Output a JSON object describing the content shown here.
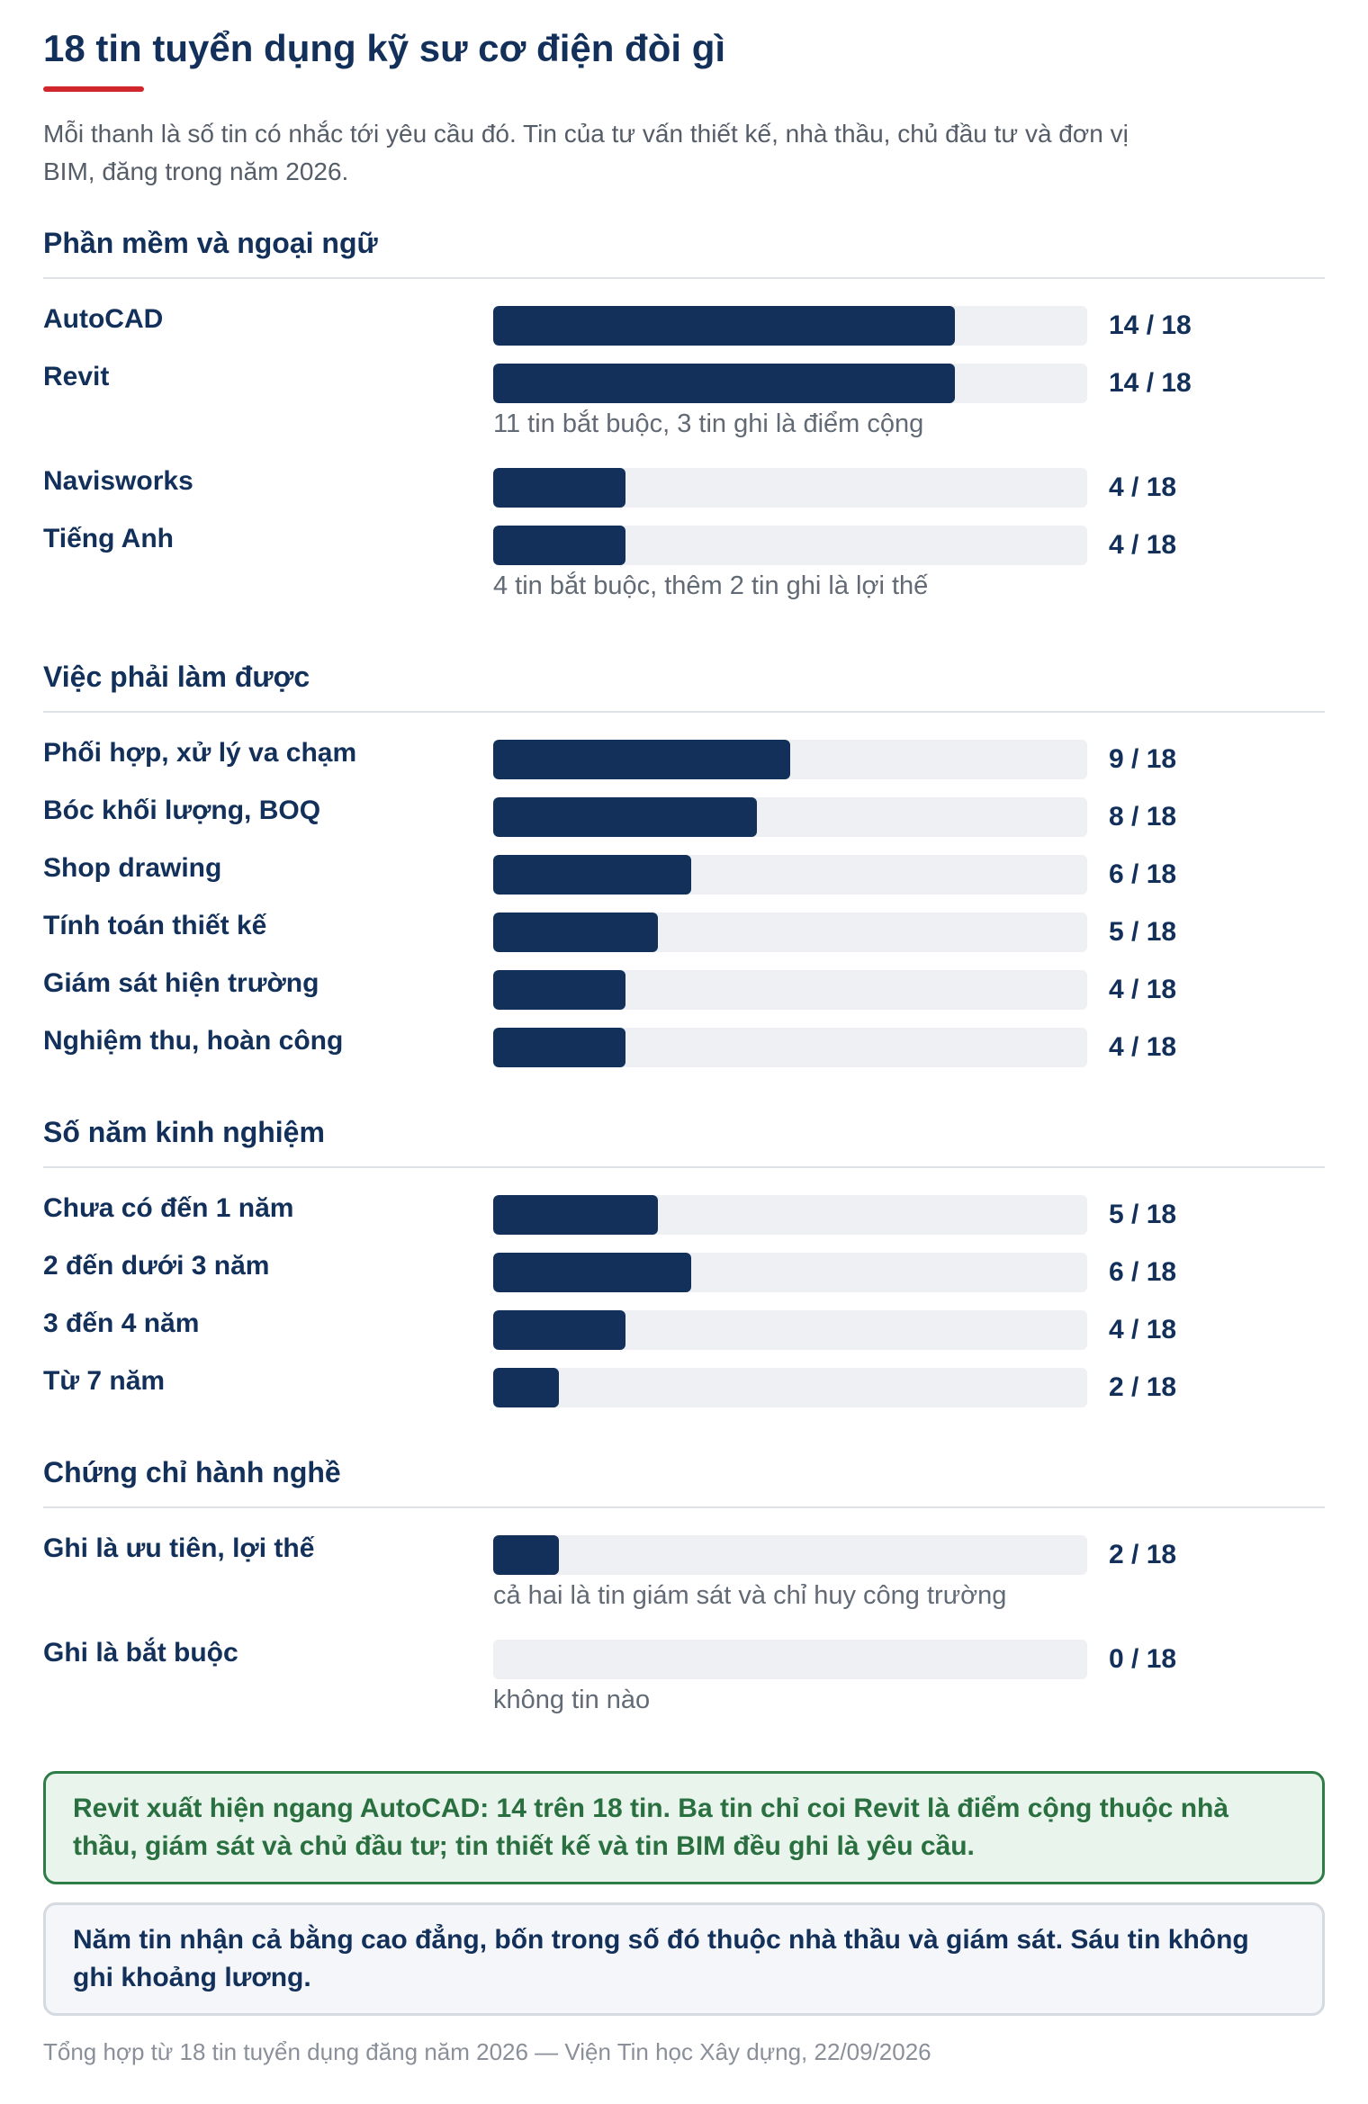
{
  "title": "18 tin tuyển dụng kỹ sư cơ điện đòi gì",
  "subtitle": "Mỗi thanh là số tin có nhắc tới yêu cầu đó. Tin của tư vấn thiết kế, nhà thầu, chủ đầu tư và đơn vị BIM, đăng trong năm 2026.",
  "colors": {
    "bar": "#12305a",
    "track": "#eef0f4",
    "accent_rule": "#d0262c",
    "callout_green_border": "#2e7d47",
    "callout_green_text": "#2a6f3f"
  },
  "chart_data": {
    "type": "bar",
    "orientation": "horizontal",
    "total": 18,
    "groups": [
      {
        "name": "Phần mềm và ngoại ngữ",
        "items": [
          {
            "label": "AutoCAD",
            "value": 14,
            "display": "14 / 18",
            "note": ""
          },
          {
            "label": "Revit",
            "value": 14,
            "display": "14 / 18",
            "note": "11 tin bắt buộc, 3 tin ghi là điểm cộng"
          },
          {
            "label": "Navisworks",
            "value": 4,
            "display": "4 / 18",
            "note": ""
          },
          {
            "label": "Tiếng Anh",
            "value": 4,
            "display": "4 / 18",
            "note": "4 tin bắt buộc, thêm 2 tin ghi là lợi thế"
          }
        ]
      },
      {
        "name": "Việc phải làm được",
        "items": [
          {
            "label": "Phối hợp, xử lý va chạm",
            "value": 9,
            "display": "9 / 18",
            "note": ""
          },
          {
            "label": "Bóc khối lượng, BOQ",
            "value": 8,
            "display": "8 / 18",
            "note": ""
          },
          {
            "label": "Shop drawing",
            "value": 6,
            "display": "6 / 18",
            "note": ""
          },
          {
            "label": "Tính toán thiết kế",
            "value": 5,
            "display": "5 / 18",
            "note": ""
          },
          {
            "label": "Giám sát hiện trường",
            "value": 4,
            "display": "4 / 18",
            "note": ""
          },
          {
            "label": "Nghiệm thu, hoàn công",
            "value": 4,
            "display": "4 / 18",
            "note": ""
          }
        ]
      },
      {
        "name": "Số năm kinh nghiệm",
        "items": [
          {
            "label": "Chưa có đến 1 năm",
            "value": 5,
            "display": "5 / 18",
            "note": ""
          },
          {
            "label": "2 đến dưới 3 năm",
            "value": 6,
            "display": "6 / 18",
            "note": ""
          },
          {
            "label": "3 đến 4 năm",
            "value": 4,
            "display": "4 / 18",
            "note": ""
          },
          {
            "label": "Từ 7 năm",
            "value": 2,
            "display": "2 / 18",
            "note": ""
          }
        ]
      },
      {
        "name": "Chứng chỉ hành nghề",
        "items": [
          {
            "label": "Ghi là ưu tiên, lợi thế",
            "value": 2,
            "display": "2 / 18",
            "note": "cả hai là tin giám sát và chỉ huy công trường"
          },
          {
            "label": "Ghi là bắt buộc",
            "value": 0,
            "display": "0 / 18",
            "note": "không tin nào"
          }
        ]
      }
    ]
  },
  "callouts": {
    "green": "Revit xuất hiện ngang AutoCAD: 14 trên 18 tin. Ba tin chỉ coi Revit là điểm cộng thuộc nhà thầu, giám sát và chủ đầu tư; tin thiết kế và tin BIM đều ghi là yêu cầu.",
    "gray": "Năm tin nhận cả bằng cao đẳng, bốn trong số đó thuộc nhà thầu và giám sát. Sáu tin không ghi khoảng lương."
  },
  "footer": "Tổng hợp từ 18 tin tuyển dụng đăng năm 2026 — Viện Tin học Xây dựng, 22/09/2026"
}
